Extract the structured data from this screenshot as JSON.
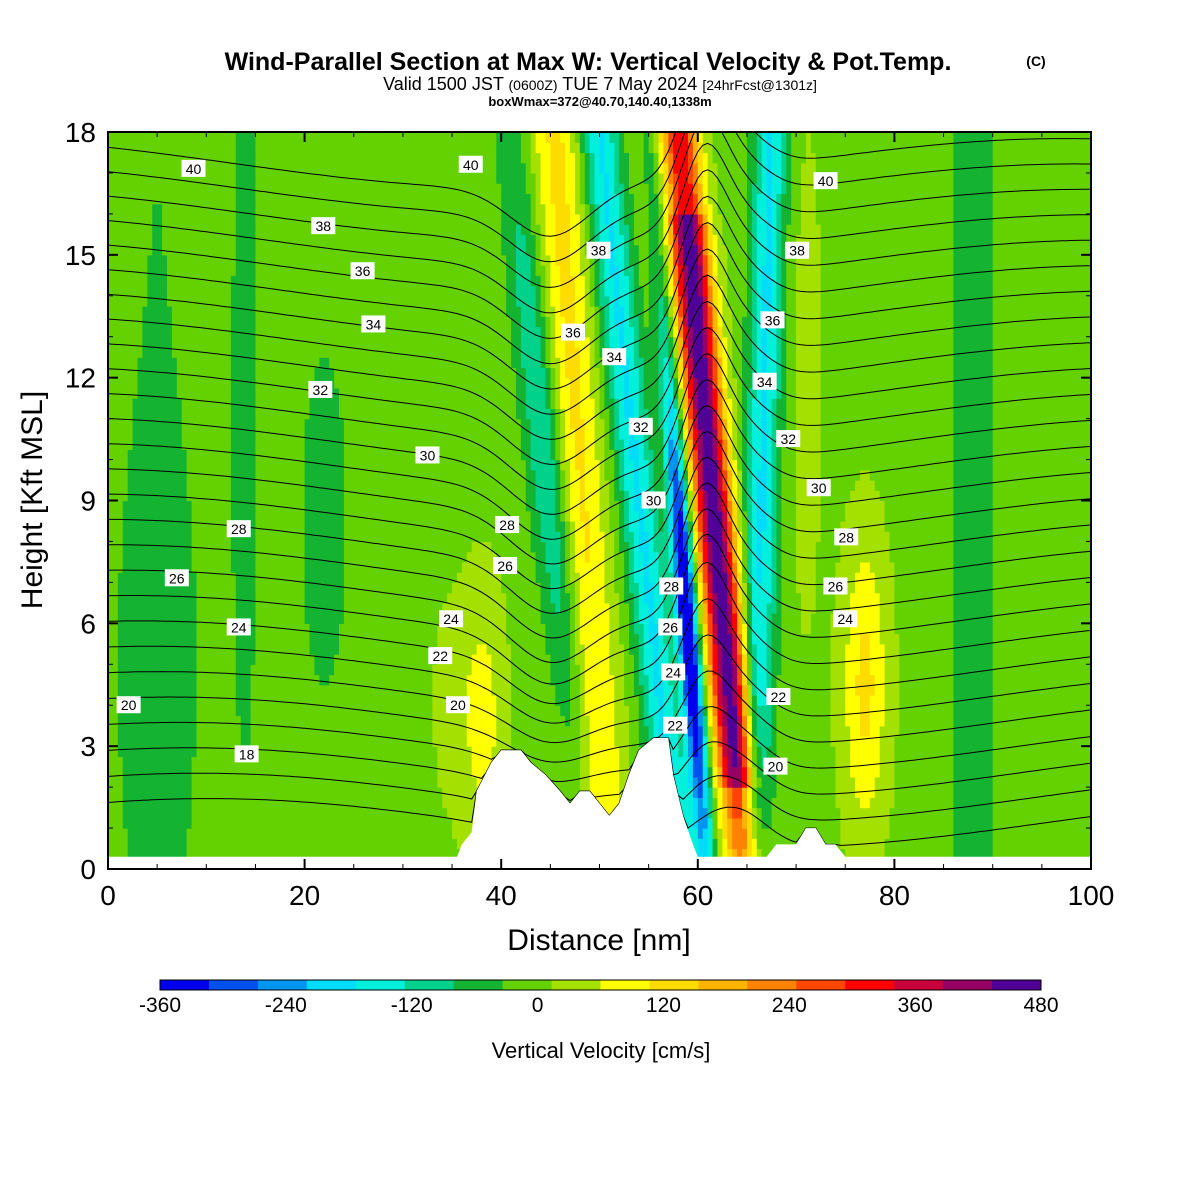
{
  "title": {
    "main": "Wind-Parallel Section at Max W: Vertical Velocity & Pot.Temp.",
    "copyright": "(C)",
    "valid_prefix": "Valid 1500 JST",
    "utc": "(0600Z)",
    "valid_day": "TUE 7 May 2024",
    "forecast": "[24hrFcst@1301z]",
    "box_info": "boxWmax=372@40.70,140.40,1338m"
  },
  "chart_data": {
    "type": "heatmap",
    "xlabel": "Distance [nm]",
    "ylabel": "Height [Kft MSL]",
    "xlim": [
      0,
      100
    ],
    "ylim": [
      0,
      18
    ],
    "x_ticks": [
      0,
      20,
      40,
      60,
      80,
      100
    ],
    "y_ticks": [
      0,
      3,
      6,
      9,
      12,
      15,
      18
    ],
    "colorbar": {
      "label": "Vertical Velocity [cm/s]",
      "range": [
        -360,
        480
      ],
      "tick_values": [
        -360,
        -240,
        -120,
        0,
        120,
        240,
        360,
        480
      ],
      "colors": [
        "#0000ee",
        "#0050ee",
        "#0096f0",
        "#00dcfa",
        "#00f0dc",
        "#00d28c",
        "#14b432",
        "#64d200",
        "#a5e100",
        "#ffff00",
        "#ffdc00",
        "#ffb400",
        "#ff8200",
        "#ff4600",
        "#ff0000",
        "#c8003c",
        "#960064",
        "#500096"
      ]
    },
    "vertical_velocity_features": [
      {
        "x": 48,
        "kind": "updraft",
        "peak": 120
      },
      {
        "x": 54,
        "kind": "downdraft",
        "peak": -180
      },
      {
        "x": 58,
        "kind": "downdraft",
        "peak": -360
      },
      {
        "x": 61.5,
        "kind": "updraft",
        "peak": 480
      },
      {
        "x": 66.5,
        "kind": "downdraft",
        "peak": -180
      },
      {
        "x": 77,
        "kind": "updraft",
        "peak": 120
      }
    ],
    "theta_contour_labels": [
      {
        "value": 40,
        "x": 8.7,
        "y": 17.1
      },
      {
        "value": 38,
        "x": 21.9,
        "y": 15.7
      },
      {
        "value": 36,
        "x": 25.9,
        "y": 14.6
      },
      {
        "value": 34,
        "x": 27.0,
        "y": 13.3
      },
      {
        "value": 32,
        "x": 21.6,
        "y": 11.7
      },
      {
        "value": 30,
        "x": 32.5,
        "y": 10.1
      },
      {
        "value": 28,
        "x": 13.3,
        "y": 8.3
      },
      {
        "value": 26,
        "x": 7.0,
        "y": 7.1
      },
      {
        "value": 24,
        "x": 13.3,
        "y": 5.9
      },
      {
        "value": 20,
        "x": 2.1,
        "y": 4.0
      },
      {
        "value": 18,
        "x": 14.1,
        "y": 2.8
      },
      {
        "value": 40,
        "x": 36.9,
        "y": 17.2
      },
      {
        "value": 28,
        "x": 40.6,
        "y": 8.4
      },
      {
        "value": 26,
        "x": 40.4,
        "y": 7.4
      },
      {
        "value": 24,
        "x": 34.9,
        "y": 6.1
      },
      {
        "value": 22,
        "x": 33.8,
        "y": 5.2
      },
      {
        "value": 20,
        "x": 35.6,
        "y": 4.0
      },
      {
        "value": 38,
        "x": 49.9,
        "y": 15.1
      },
      {
        "value": 36,
        "x": 47.3,
        "y": 13.1
      },
      {
        "value": 34,
        "x": 51.5,
        "y": 12.5
      },
      {
        "value": 32,
        "x": 54.2,
        "y": 10.8
      },
      {
        "value": 30,
        "x": 55.5,
        "y": 9.0
      },
      {
        "value": 28,
        "x": 57.3,
        "y": 6.9
      },
      {
        "value": 26,
        "x": 57.2,
        "y": 5.9
      },
      {
        "value": 24,
        "x": 57.5,
        "y": 4.8
      },
      {
        "value": 22,
        "x": 57.7,
        "y": 3.5
      },
      {
        "value": 40,
        "x": 73.0,
        "y": 16.8
      },
      {
        "value": 38,
        "x": 70.1,
        "y": 15.1
      },
      {
        "value": 36,
        "x": 67.6,
        "y": 13.4
      },
      {
        "value": 34,
        "x": 66.8,
        "y": 11.9
      },
      {
        "value": 32,
        "x": 69.2,
        "y": 10.5
      },
      {
        "value": 30,
        "x": 72.3,
        "y": 9.3
      },
      {
        "value": 28,
        "x": 75.1,
        "y": 8.1
      },
      {
        "value": 26,
        "x": 74.0,
        "y": 6.9
      },
      {
        "value": 24,
        "x": 75.0,
        "y": 6.1
      },
      {
        "value": 22,
        "x": 68.2,
        "y": 4.2
      },
      {
        "value": 20,
        "x": 67.9,
        "y": 2.5
      }
    ],
    "terrain": [
      [
        0,
        0.3
      ],
      [
        35.5,
        0.3
      ],
      [
        36,
        0.6
      ],
      [
        37,
        0.9
      ],
      [
        37.5,
        1.9
      ],
      [
        39,
        2.6
      ],
      [
        40,
        2.9
      ],
      [
        42,
        2.9
      ],
      [
        43,
        2.6
      ],
      [
        44.5,
        2.3
      ],
      [
        46,
        1.9
      ],
      [
        47,
        1.6
      ],
      [
        48,
        1.9
      ],
      [
        49,
        1.9
      ],
      [
        50,
        1.6
      ],
      [
        51,
        1.3
      ],
      [
        52,
        1.6
      ],
      [
        53,
        2.3
      ],
      [
        54,
        2.9
      ],
      [
        55.5,
        3.2
      ],
      [
        57,
        3.2
      ],
      [
        57.5,
        2.3
      ],
      [
        58.5,
        1.3
      ],
      [
        59.5,
        0.6
      ],
      [
        60,
        0.3
      ],
      [
        67,
        0.3
      ],
      [
        68,
        0.6
      ],
      [
        70,
        0.6
      ],
      [
        71,
        1.0
      ],
      [
        72,
        1.0
      ],
      [
        73,
        0.6
      ],
      [
        74,
        0.6
      ],
      [
        75,
        0.3
      ],
      [
        100,
        0.3
      ]
    ]
  }
}
